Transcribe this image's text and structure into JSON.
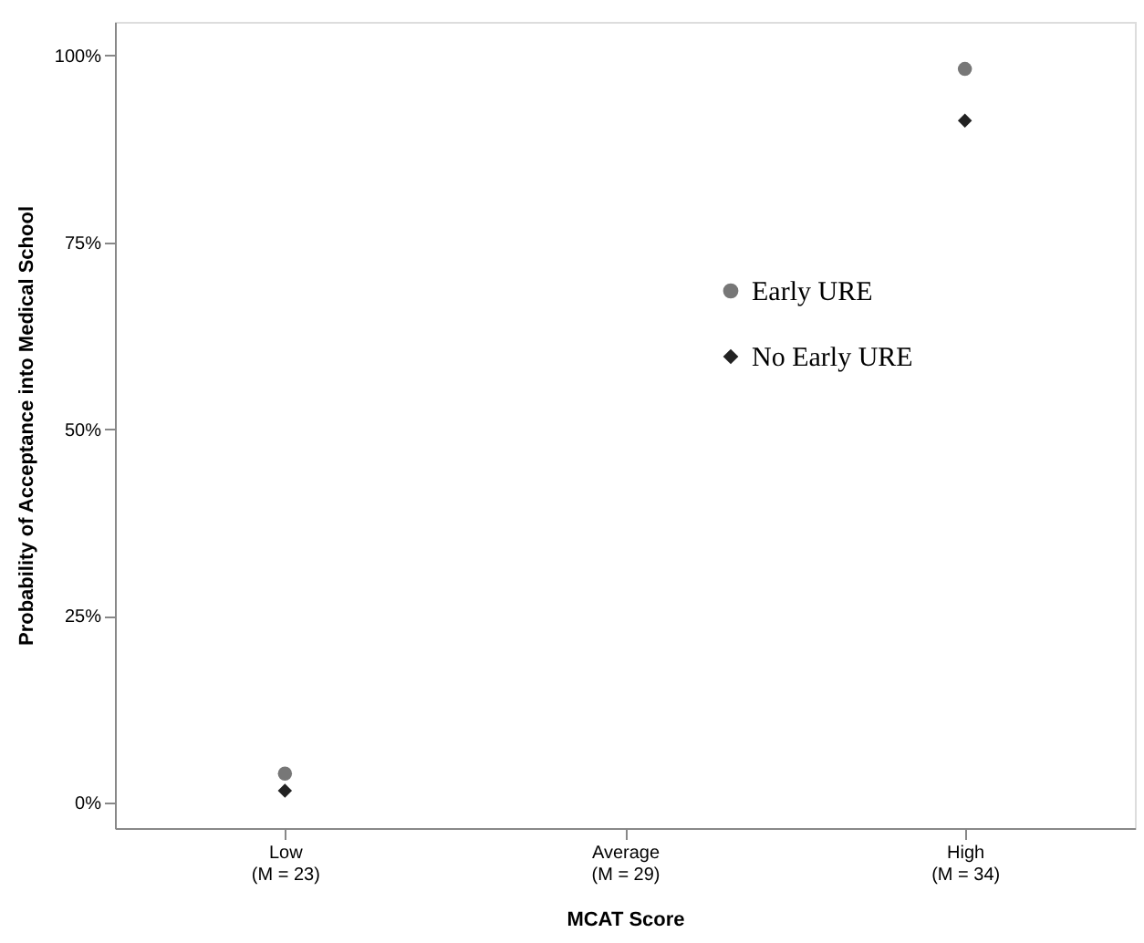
{
  "chart_data": {
    "type": "scatter",
    "xlabel": "MCAT Score",
    "ylabel": "Probability of Acceptance into Medical School",
    "categories": [
      "Low\n(M = 23)",
      "Average\n(M = 29)",
      "High\n(M = 34)"
    ],
    "series": [
      {
        "name": "Early URE",
        "color": "#777777",
        "marker": "circle",
        "values": [
          3.9,
          null,
          98.2
        ]
      },
      {
        "name": "No Early URE",
        "color": "#222222",
        "marker": "diamond",
        "values": [
          1.6,
          null,
          91.3
        ]
      }
    ],
    "ylim": [
      -3.4,
      104.5
    ],
    "yticks": [
      {
        "value": 0,
        "label": "0%"
      },
      {
        "value": 25,
        "label": "25%"
      },
      {
        "value": 50,
        "label": "50%"
      },
      {
        "value": 75,
        "label": "75%"
      },
      {
        "value": 100,
        "label": "100%"
      }
    ],
    "grid": false,
    "legend": "right"
  }
}
